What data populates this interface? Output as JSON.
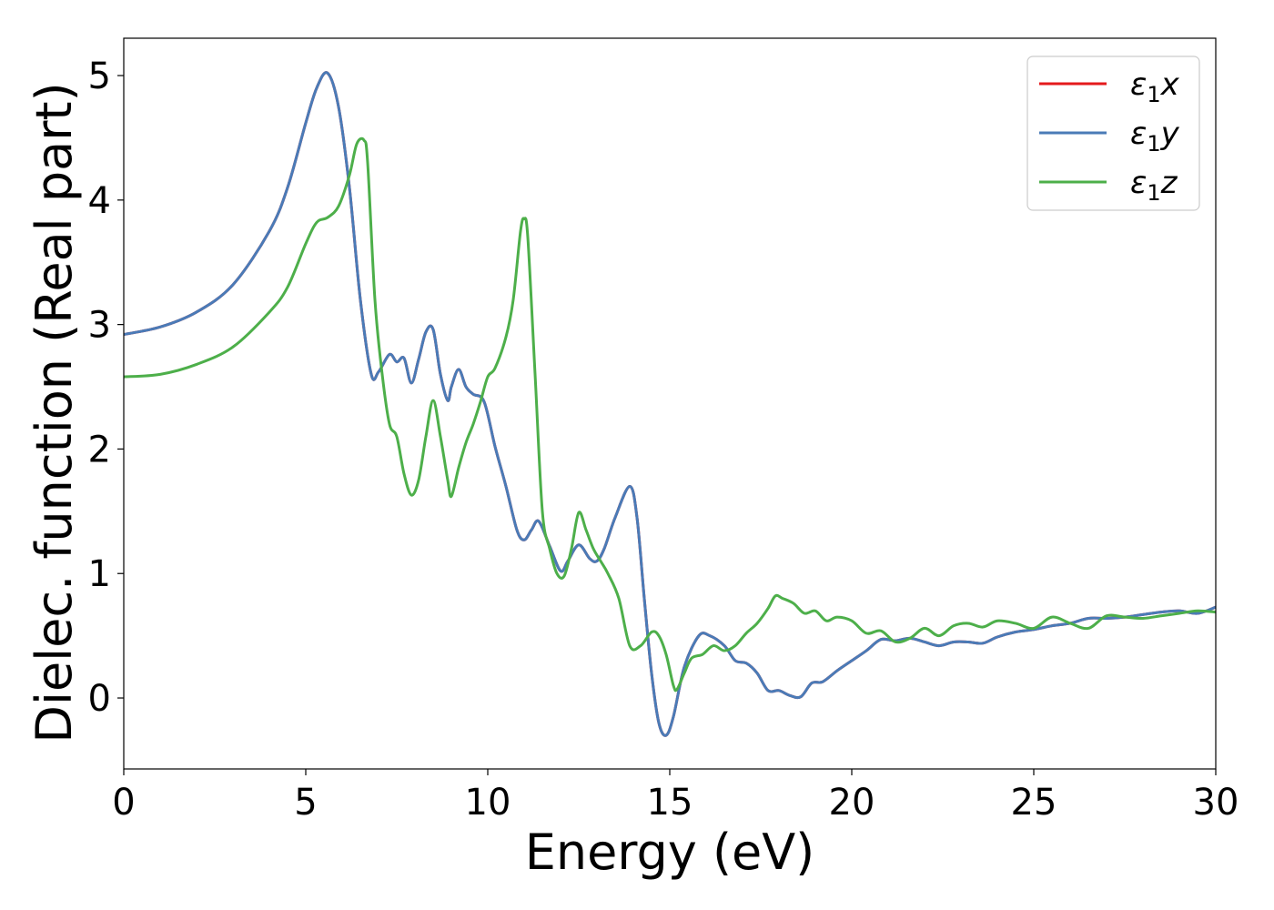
{
  "chart_data": {
    "type": "line",
    "title": "",
    "xlabel": "Energy (eV)",
    "ylabel": "Dielec. function (Real part)",
    "xlim": [
      0,
      30
    ],
    "ylim": [
      -0.57,
      5.3
    ],
    "xticks": [
      0,
      5,
      10,
      15,
      20,
      25,
      30
    ],
    "xtick_labels": [
      "0",
      "5",
      "10",
      "15",
      "20",
      "25",
      "30"
    ],
    "yticks": [
      0,
      1,
      2,
      3,
      4,
      5
    ],
    "ytick_labels": [
      "0",
      "1",
      "2",
      "3",
      "4",
      "5"
    ],
    "grid": false,
    "legend_position": "top-right",
    "series": [
      {
        "name": "ε₁x",
        "color": "#e41a1c",
        "x": [
          0,
          1,
          2,
          3,
          4,
          4.5,
          5,
          5.3,
          5.6,
          5.9,
          6.2,
          6.5,
          6.8,
          7.0,
          7.3,
          7.5,
          7.7,
          7.9,
          8.1,
          8.3,
          8.5,
          8.7,
          8.9,
          9.0,
          9.2,
          9.4,
          9.6,
          9.9,
          10.2,
          10.5,
          10.8,
          11.0,
          11.2,
          11.4,
          11.7,
          12.0,
          12.2,
          12.5,
          12.8,
          13.0,
          13.2,
          13.5,
          13.9,
          14.1,
          14.3,
          14.5,
          14.7,
          14.9,
          15.1,
          15.4,
          15.8,
          16.1,
          16.5,
          16.8,
          17.1,
          17.4,
          17.7,
          18.0,
          18.3,
          18.6,
          18.9,
          19.2,
          19.6,
          20.0,
          20.4,
          20.8,
          21.2,
          21.6,
          22.0,
          22.4,
          22.8,
          23.2,
          23.6,
          24.0,
          24.5,
          25.0,
          25.5,
          26.0,
          26.5,
          27.0,
          27.5,
          28.0,
          28.5,
          29.0,
          29.5,
          30.0
        ],
        "y": [
          2.92,
          2.98,
          3.1,
          3.32,
          3.75,
          4.1,
          4.62,
          4.9,
          5.02,
          4.75,
          4.1,
          3.2,
          2.6,
          2.62,
          2.76,
          2.7,
          2.73,
          2.53,
          2.72,
          2.94,
          2.96,
          2.6,
          2.39,
          2.5,
          2.64,
          2.5,
          2.44,
          2.38,
          2.02,
          1.7,
          1.35,
          1.27,
          1.35,
          1.42,
          1.22,
          1.02,
          1.1,
          1.23,
          1.12,
          1.1,
          1.2,
          1.45,
          1.7,
          1.45,
          0.8,
          0.2,
          -0.2,
          -0.3,
          -0.15,
          0.25,
          0.5,
          0.5,
          0.42,
          0.3,
          0.28,
          0.2,
          0.06,
          0.06,
          0.02,
          0.01,
          0.12,
          0.13,
          0.22,
          0.3,
          0.38,
          0.47,
          0.46,
          0.48,
          0.45,
          0.42,
          0.45,
          0.45,
          0.44,
          0.49,
          0.53,
          0.55,
          0.58,
          0.6,
          0.64,
          0.64,
          0.65,
          0.67,
          0.69,
          0.7,
          0.68,
          0.73
        ]
      },
      {
        "name": "ε₁y",
        "color": "#4a7bb7",
        "x": [
          0,
          1,
          2,
          3,
          4,
          4.5,
          5,
          5.3,
          5.6,
          5.9,
          6.2,
          6.5,
          6.8,
          7.0,
          7.3,
          7.5,
          7.7,
          7.9,
          8.1,
          8.3,
          8.5,
          8.7,
          8.9,
          9.0,
          9.2,
          9.4,
          9.6,
          9.9,
          10.2,
          10.5,
          10.8,
          11.0,
          11.2,
          11.4,
          11.7,
          12.0,
          12.2,
          12.5,
          12.8,
          13.0,
          13.2,
          13.5,
          13.9,
          14.1,
          14.3,
          14.5,
          14.7,
          14.9,
          15.1,
          15.4,
          15.8,
          16.1,
          16.5,
          16.8,
          17.1,
          17.4,
          17.7,
          18.0,
          18.3,
          18.6,
          18.9,
          19.2,
          19.6,
          20.0,
          20.4,
          20.8,
          21.2,
          21.6,
          22.0,
          22.4,
          22.8,
          23.2,
          23.6,
          24.0,
          24.5,
          25.0,
          25.5,
          26.0,
          26.5,
          27.0,
          27.5,
          28.0,
          28.5,
          29.0,
          29.5,
          30.0
        ],
        "y": [
          2.92,
          2.98,
          3.1,
          3.32,
          3.75,
          4.1,
          4.62,
          4.9,
          5.02,
          4.75,
          4.1,
          3.2,
          2.6,
          2.62,
          2.76,
          2.7,
          2.73,
          2.53,
          2.72,
          2.94,
          2.96,
          2.6,
          2.39,
          2.5,
          2.64,
          2.5,
          2.44,
          2.38,
          2.02,
          1.7,
          1.35,
          1.27,
          1.35,
          1.42,
          1.22,
          1.02,
          1.1,
          1.23,
          1.12,
          1.1,
          1.2,
          1.45,
          1.7,
          1.45,
          0.8,
          0.2,
          -0.2,
          -0.3,
          -0.15,
          0.25,
          0.5,
          0.5,
          0.42,
          0.3,
          0.28,
          0.2,
          0.06,
          0.06,
          0.02,
          0.01,
          0.12,
          0.13,
          0.22,
          0.3,
          0.38,
          0.47,
          0.46,
          0.48,
          0.45,
          0.42,
          0.45,
          0.45,
          0.44,
          0.49,
          0.53,
          0.55,
          0.58,
          0.6,
          0.64,
          0.64,
          0.65,
          0.67,
          0.69,
          0.7,
          0.68,
          0.73
        ]
      },
      {
        "name": "ε₁z",
        "color": "#4daf4a",
        "x": [
          0,
          1,
          2,
          3,
          4,
          4.5,
          5,
          5.3,
          5.6,
          5.9,
          6.2,
          6.4,
          6.6,
          6.7,
          6.9,
          7.1,
          7.3,
          7.5,
          7.7,
          7.9,
          8.1,
          8.3,
          8.5,
          8.7,
          8.9,
          9.0,
          9.2,
          9.4,
          9.6,
          9.8,
          10.0,
          10.2,
          10.5,
          10.7,
          10.9,
          11.0,
          11.1,
          11.3,
          11.5,
          11.7,
          11.9,
          12.1,
          12.3,
          12.5,
          12.7,
          12.9,
          13.1,
          13.3,
          13.6,
          13.9,
          14.2,
          14.5,
          14.7,
          14.9,
          15.1,
          15.2,
          15.4,
          15.6,
          15.9,
          16.2,
          16.5,
          16.8,
          17.1,
          17.4,
          17.7,
          17.9,
          18.1,
          18.4,
          18.7,
          19.0,
          19.3,
          19.6,
          20.0,
          20.4,
          20.8,
          21.2,
          21.6,
          22.0,
          22.4,
          22.8,
          23.2,
          23.6,
          24.0,
          24.5,
          25.0,
          25.5,
          26.0,
          26.5,
          27.0,
          27.5,
          28.0,
          28.5,
          29.0,
          29.5,
          30.0
        ],
        "y": [
          2.58,
          2.6,
          2.68,
          2.82,
          3.1,
          3.3,
          3.65,
          3.82,
          3.86,
          3.95,
          4.2,
          4.45,
          4.48,
          4.3,
          3.2,
          2.6,
          2.2,
          2.1,
          1.8,
          1.63,
          1.75,
          2.1,
          2.39,
          2.1,
          1.75,
          1.62,
          1.85,
          2.05,
          2.2,
          2.38,
          2.58,
          2.65,
          2.9,
          3.2,
          3.75,
          3.85,
          3.7,
          2.6,
          1.5,
          1.2,
          1.0,
          0.98,
          1.2,
          1.49,
          1.35,
          1.2,
          1.1,
          1.0,
          0.8,
          0.42,
          0.42,
          0.53,
          0.5,
          0.35,
          0.1,
          0.07,
          0.2,
          0.32,
          0.35,
          0.42,
          0.38,
          0.42,
          0.52,
          0.6,
          0.72,
          0.82,
          0.8,
          0.76,
          0.68,
          0.7,
          0.62,
          0.65,
          0.62,
          0.52,
          0.54,
          0.45,
          0.48,
          0.56,
          0.5,
          0.58,
          0.6,
          0.57,
          0.62,
          0.6,
          0.56,
          0.65,
          0.6,
          0.56,
          0.66,
          0.65,
          0.64,
          0.66,
          0.68,
          0.7,
          0.69
        ]
      }
    ]
  },
  "legend": {
    "items": [
      {
        "label": "ε",
        "sub": "1",
        "axis": "x",
        "color": "#e41a1c"
      },
      {
        "label": "ε",
        "sub": "1",
        "axis": "y",
        "color": "#4a7bb7"
      },
      {
        "label": "ε",
        "sub": "1",
        "axis": "z",
        "color": "#4daf4a"
      }
    ]
  }
}
